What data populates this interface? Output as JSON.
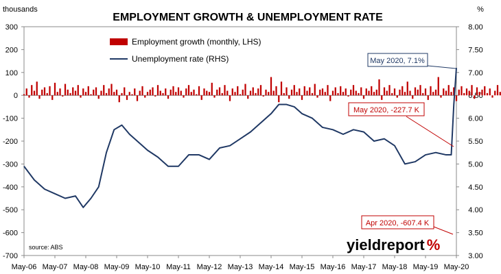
{
  "chart_data": {
    "type": "bar+line",
    "title": "EMPLOYMENT GROWTH & UNEMPLOYMENT RATE",
    "left_axis": {
      "unit_label": "thousands",
      "ylim": [
        -700,
        300
      ],
      "ticks": [
        300,
        200,
        100,
        0,
        -100,
        -200,
        -300,
        -400,
        -500,
        -600,
        -700
      ],
      "tick_labels": [
        "300",
        "200",
        "100",
        "0",
        "-100",
        "-200",
        "-300",
        "-400",
        "-500",
        "-600",
        "-700"
      ]
    },
    "right_axis": {
      "unit_label": "%",
      "ylim": [
        3.0,
        8.0
      ],
      "ticks": [
        8.0,
        7.5,
        7.0,
        6.5,
        6.0,
        5.5,
        5.0,
        4.5,
        4.0,
        3.5,
        3.0
      ],
      "tick_labels": [
        "8.00",
        "7.50",
        "7.00",
        "6.50",
        "6.00",
        "5.50",
        "5.00",
        "4.50",
        "4.00",
        "3.50",
        "3.00"
      ]
    },
    "x_axis": {
      "tick_labels": [
        "May-06",
        "May-07",
        "May-08",
        "May-09",
        "May-10",
        "May-11",
        "May-12",
        "May-13",
        "May-14",
        "May-15",
        "May-16",
        "May-17",
        "May-18",
        "May-19",
        "May-20"
      ]
    },
    "legend": {
      "position": "top-center",
      "items": [
        {
          "label": "Employment growth (monthly, LHS)",
          "color": "#c00000",
          "kind": "bar"
        },
        {
          "label": "Unemployment rate (RHS)",
          "color": "#1f3864",
          "kind": "line"
        }
      ]
    },
    "series": [
      {
        "name": "Employment growth (monthly, LHS)",
        "type": "bar",
        "axis": "left",
        "color": "#c00000",
        "start": "May-06",
        "values": [
          5,
          30,
          -10,
          45,
          20,
          60,
          -15,
          25,
          35,
          10,
          40,
          -20,
          55,
          15,
          30,
          -5,
          50,
          25,
          10,
          35,
          20,
          45,
          -10,
          30,
          15,
          40,
          5,
          25,
          35,
          -15,
          20,
          45,
          10,
          30,
          50,
          15,
          25,
          -30,
          10,
          35,
          -20,
          15,
          5,
          30,
          -25,
          20,
          40,
          -10,
          15,
          25,
          35,
          -5,
          45,
          20,
          10,
          30,
          -15,
          25,
          40,
          15,
          35,
          20,
          -10,
          30,
          45,
          15,
          25,
          5,
          40,
          -20,
          30,
          20,
          15,
          55,
          -10,
          25,
          35,
          10,
          45,
          20,
          -25,
          30,
          15,
          40,
          5,
          25,
          50,
          -15,
          20,
          35,
          10,
          30,
          45,
          -5,
          25,
          15,
          80,
          20,
          40,
          -30,
          60,
          10,
          35,
          -15,
          25,
          45,
          15,
          30,
          -20,
          40,
          20,
          35,
          10,
          50,
          -10,
          25,
          30,
          15,
          45,
          -25,
          20,
          35,
          10,
          40,
          15,
          30,
          -5,
          25,
          45,
          20,
          10,
          35,
          -15,
          30,
          20,
          40,
          15,
          25,
          70,
          -20,
          35,
          20,
          45,
          10,
          30,
          -10,
          25,
          40,
          15,
          60,
          20,
          -15,
          35,
          25,
          45,
          10,
          30,
          -20,
          40,
          15,
          25,
          80,
          -10,
          30,
          20,
          45,
          15,
          35,
          -25,
          25,
          40,
          10,
          30,
          20,
          45,
          -15,
          35,
          15,
          25,
          40,
          10,
          30,
          -10,
          20,
          45,
          15,
          35,
          25,
          40,
          -20,
          30,
          15,
          25,
          45,
          10,
          35,
          -15,
          30,
          20,
          40,
          15,
          25,
          45,
          10,
          -30,
          35,
          20,
          25,
          40,
          15,
          30,
          -10,
          45,
          20,
          35,
          15,
          -607.4,
          -227.7
        ]
      },
      {
        "name": "Unemployment rate (RHS)",
        "type": "line",
        "axis": "right",
        "color": "#1f3864",
        "points": [
          {
            "x": "May-06",
            "y": 4.95
          },
          {
            "x": "Sep-06",
            "y": 4.65
          },
          {
            "x": "Jan-07",
            "y": 4.45
          },
          {
            "x": "May-07",
            "y": 4.35
          },
          {
            "x": "Sep-07",
            "y": 4.25
          },
          {
            "x": "Jan-08",
            "y": 4.3
          },
          {
            "x": "Apr-08",
            "y": 4.05
          },
          {
            "x": "Jul-08",
            "y": 4.25
          },
          {
            "x": "Oct-08",
            "y": 4.5
          },
          {
            "x": "Jan-09",
            "y": 5.25
          },
          {
            "x": "Apr-09",
            "y": 5.75
          },
          {
            "x": "Jul-09",
            "y": 5.85
          },
          {
            "x": "Oct-09",
            "y": 5.65
          },
          {
            "x": "Jan-10",
            "y": 5.5
          },
          {
            "x": "May-10",
            "y": 5.3
          },
          {
            "x": "Sep-10",
            "y": 5.15
          },
          {
            "x": "Jan-11",
            "y": 4.95
          },
          {
            "x": "May-11",
            "y": 4.95
          },
          {
            "x": "Sep-11",
            "y": 5.2
          },
          {
            "x": "Jan-12",
            "y": 5.2
          },
          {
            "x": "May-12",
            "y": 5.1
          },
          {
            "x": "Sep-12",
            "y": 5.35
          },
          {
            "x": "Jan-13",
            "y": 5.4
          },
          {
            "x": "May-13",
            "y": 5.55
          },
          {
            "x": "Sep-13",
            "y": 5.7
          },
          {
            "x": "Jan-14",
            "y": 5.9
          },
          {
            "x": "May-14",
            "y": 6.1
          },
          {
            "x": "Aug-14",
            "y": 6.3
          },
          {
            "x": "Nov-14",
            "y": 6.3
          },
          {
            "x": "Feb-15",
            "y": 6.25
          },
          {
            "x": "May-15",
            "y": 6.1
          },
          {
            "x": "Sep-15",
            "y": 6.0
          },
          {
            "x": "Jan-16",
            "y": 5.8
          },
          {
            "x": "May-16",
            "y": 5.75
          },
          {
            "x": "Sep-16",
            "y": 5.65
          },
          {
            "x": "Jan-17",
            "y": 5.75
          },
          {
            "x": "May-17",
            "y": 5.7
          },
          {
            "x": "Sep-17",
            "y": 5.5
          },
          {
            "x": "Jan-18",
            "y": 5.55
          },
          {
            "x": "May-18",
            "y": 5.4
          },
          {
            "x": "Sep-18",
            "y": 5.0
          },
          {
            "x": "Jan-19",
            "y": 5.05
          },
          {
            "x": "May-19",
            "y": 5.2
          },
          {
            "x": "Sep-19",
            "y": 5.25
          },
          {
            "x": "Jan-20",
            "y": 5.2
          },
          {
            "x": "Mar-20",
            "y": 5.2
          },
          {
            "x": "Apr-20",
            "y": 6.3
          },
          {
            "x": "May-20",
            "y": 7.1
          }
        ]
      }
    ],
    "annotations": [
      {
        "text": "May 2020, 7.1%",
        "color": "#1f3864"
      },
      {
        "text": "May 2020, -227.7 K",
        "color": "#c00000"
      },
      {
        "text": "Apr 2020, -607.4 K",
        "color": "#c00000"
      }
    ],
    "source": "source: ABS",
    "brand": {
      "part1": "yield",
      "part2": "report",
      "mark": "%",
      "color1": "#000000",
      "color2": "#000000",
      "mark_color": "#c00000"
    },
    "colors": {
      "bar": "#c00000",
      "line": "#1f3864",
      "annotation_blue": "#1f3864",
      "annotation_red": "#c00000"
    }
  }
}
